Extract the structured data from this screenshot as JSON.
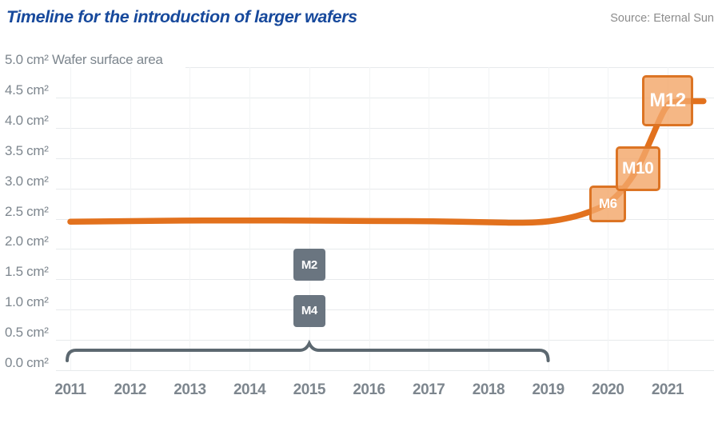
{
  "header": {
    "title": "Timeline for the introduction of larger wafers",
    "source": "Source: Eternal Sun"
  },
  "chart_data": {
    "type": "line",
    "title": "Timeline for the introduction of larger wafers",
    "ylabel": "Wafer surface area",
    "y_unit": "cm²",
    "ylim": [
      0.0,
      5.0
    ],
    "ytick_step": 0.5,
    "grid": "horizontal solid light, vertical very faint per year",
    "legend_position": "none",
    "yticks": [
      {
        "value": 5.0,
        "label": "5.0 cm²"
      },
      {
        "value": 4.5,
        "label": "4.5 cm²"
      },
      {
        "value": 4.0,
        "label": "4.0 cm²"
      },
      {
        "value": 3.5,
        "label": "3.5 cm²"
      },
      {
        "value": 3.0,
        "label": "3.0 cm²"
      },
      {
        "value": 2.5,
        "label": "2.5 cm²"
      },
      {
        "value": 2.0,
        "label": "2.0 cm²"
      },
      {
        "value": 1.5,
        "label": "1.5 cm²"
      },
      {
        "value": 1.0,
        "label": "1.0 cm²"
      },
      {
        "value": 0.5,
        "label": "0.5 cm²"
      },
      {
        "value": 0.0,
        "label": "0.0 cm²"
      }
    ],
    "xticks": [
      "2011",
      "2012",
      "2013",
      "2014",
      "2015",
      "2016",
      "2017",
      "2018",
      "2019",
      "2020",
      "2021"
    ],
    "xlim": [
      2011,
      2021.6
    ],
    "series": [
      {
        "name": "Wafer surface area (cm²)",
        "color": "#e2711d",
        "points": [
          [
            2011.0,
            2.45
          ],
          [
            2012.0,
            2.46
          ],
          [
            2013.0,
            2.47
          ],
          [
            2014.0,
            2.47
          ],
          [
            2015.0,
            2.47
          ],
          [
            2016.0,
            2.46
          ],
          [
            2017.0,
            2.46
          ],
          [
            2018.0,
            2.44
          ],
          [
            2018.6,
            2.43
          ],
          [
            2019.0,
            2.45
          ],
          [
            2019.4,
            2.52
          ],
          [
            2019.7,
            2.61
          ],
          [
            2020.0,
            2.74
          ],
          [
            2020.25,
            2.97
          ],
          [
            2020.5,
            3.32
          ],
          [
            2020.7,
            3.76
          ],
          [
            2020.9,
            4.22
          ],
          [
            2021.0,
            4.38
          ],
          [
            2021.1,
            4.44
          ],
          [
            2021.6,
            4.44
          ]
        ]
      }
    ],
    "annotations": [
      {
        "label": "M2",
        "x": 2015.0,
        "y": 1.74,
        "style": "gray",
        "size": 40
      },
      {
        "label": "M4",
        "x": 2015.0,
        "y": 0.98,
        "style": "gray",
        "size": 40
      },
      {
        "label": "M6",
        "x": 2020.0,
        "y": 2.74,
        "style": "orange",
        "size": 46
      },
      {
        "label": "M10",
        "x": 2020.5,
        "y": 3.33,
        "style": "orange",
        "size": 56
      },
      {
        "label": "M12",
        "x": 2021.0,
        "y": 4.45,
        "style": "orange",
        "size": 64
      }
    ],
    "brace": {
      "from_year": 2011,
      "to_year": 2019,
      "peak_year": 2015
    },
    "colors": {
      "line": "#e2711d",
      "orange_box_fill": "#f3a76a",
      "orange_box_border": "#dc7424",
      "gray_box": "#6a7580",
      "brace": "#5c6870",
      "gridline": "#e7eaec",
      "axis_text": "#7d868e",
      "title": "#17499c",
      "source": "#8c8c8c"
    }
  }
}
